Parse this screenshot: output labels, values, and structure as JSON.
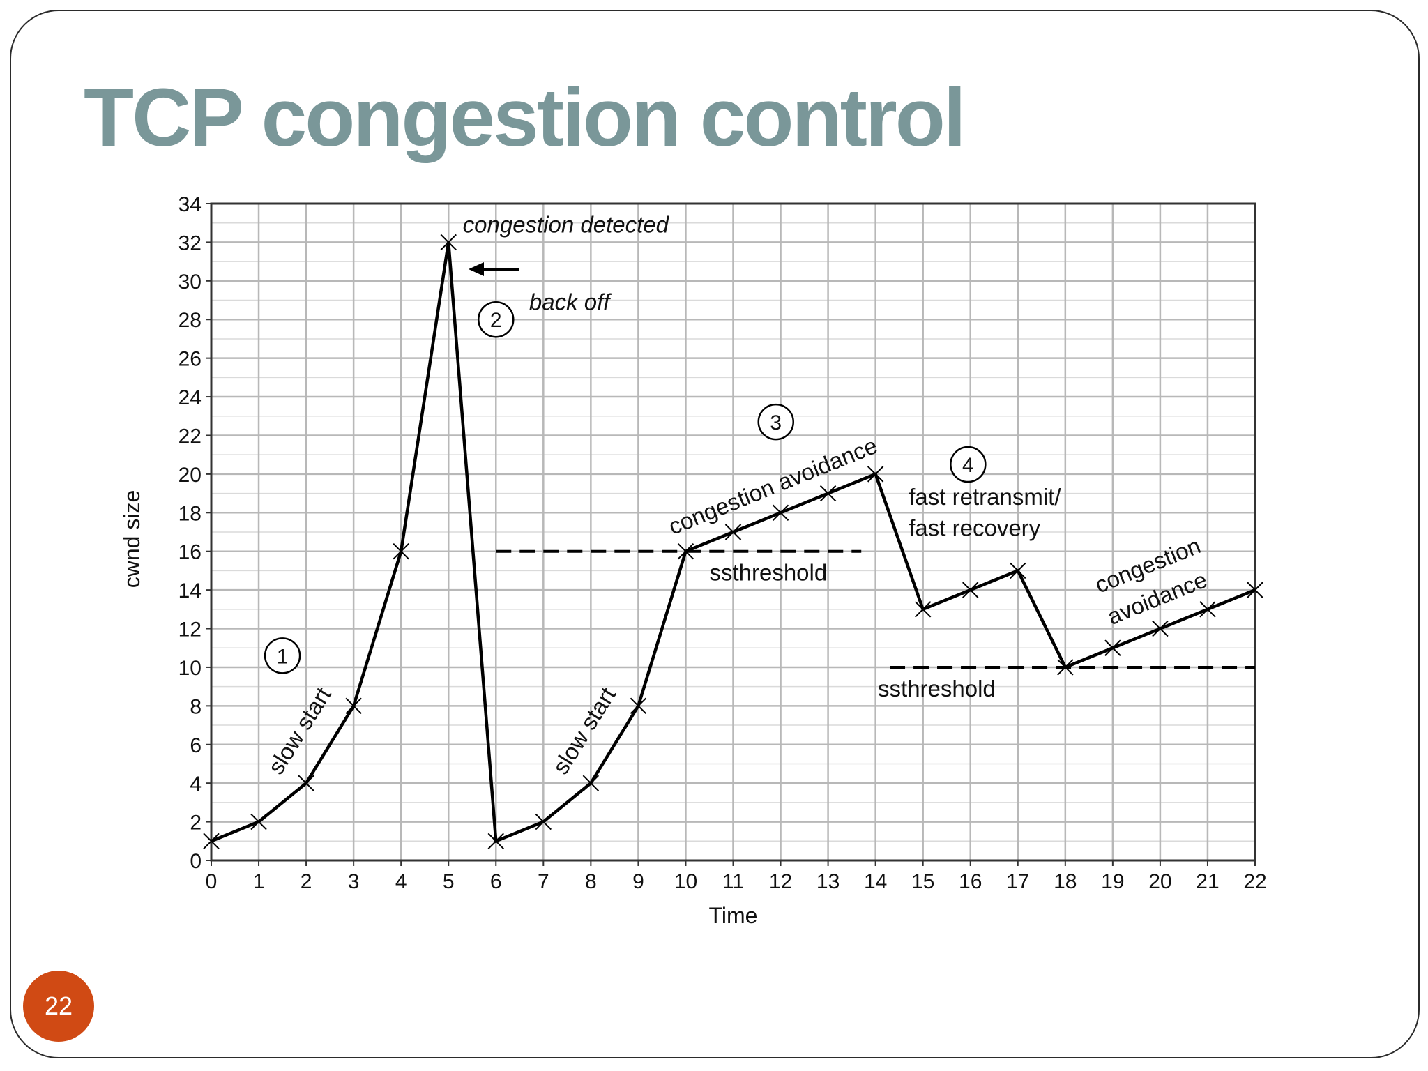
{
  "slide": {
    "title": "TCP congestion control",
    "page_number": "22",
    "badge_color": "#d04a14",
    "title_color": "#7a9799"
  },
  "chart_data": {
    "type": "line",
    "xlabel": "Time",
    "ylabel": "cwnd size",
    "xlim": [
      0,
      22
    ],
    "ylim": [
      0,
      34
    ],
    "x_ticks": [
      0,
      1,
      2,
      3,
      4,
      5,
      6,
      7,
      8,
      9,
      10,
      11,
      12,
      13,
      14,
      15,
      16,
      17,
      18,
      19,
      20,
      21,
      22
    ],
    "y_ticks": [
      0,
      2,
      4,
      6,
      8,
      10,
      12,
      14,
      16,
      18,
      20,
      22,
      24,
      26,
      28,
      30,
      32,
      34
    ],
    "grid": true,
    "x": [
      0,
      1,
      2,
      3,
      4,
      5,
      6,
      7,
      8,
      9,
      10,
      11,
      12,
      13,
      14,
      15,
      16,
      17,
      18,
      19,
      20,
      21,
      22
    ],
    "y": [
      1,
      2,
      4,
      8,
      16,
      32,
      1,
      2,
      4,
      8,
      16,
      17,
      18,
      19,
      20,
      13,
      14,
      15,
      10,
      11,
      12,
      13,
      14
    ],
    "thresholds": [
      {
        "label": "ssthreshold",
        "y": 16,
        "x_start": 6,
        "x_end": 13.7
      },
      {
        "label": "ssthreshold",
        "y": 10,
        "x_start": 14.3,
        "x_end": 22
      }
    ],
    "annotations": [
      {
        "id": "congestion-detected",
        "text": "congestion detected",
        "x": 5.3,
        "y": 32.5,
        "italic": true
      },
      {
        "id": "back-off",
        "text": "back off",
        "x": 6.7,
        "y": 28.5,
        "italic": true
      },
      {
        "id": "slow-start-1",
        "text": "slow start",
        "x": 2.0,
        "y": 6.5,
        "angle": -58
      },
      {
        "id": "slow-start-2",
        "text": "slow start",
        "x": 8.0,
        "y": 6.5,
        "angle": -58
      },
      {
        "id": "congestion-avoidance-1",
        "text": "congestion avoidance",
        "x": 11.9,
        "y": 19.0,
        "angle": -22
      },
      {
        "id": "fast-retransmit",
        "text": "fast retransmit/",
        "x": 14.7,
        "y": 18.4
      },
      {
        "id": "fast-recovery",
        "text": "fast recovery",
        "x": 14.7,
        "y": 16.8
      },
      {
        "id": "congestion-avoidance-2a",
        "text": "congestion",
        "x": 19.8,
        "y": 14.9,
        "angle": -22
      },
      {
        "id": "congestion-avoidance-2b",
        "text": "avoidance",
        "x": 20.0,
        "y": 13.2,
        "angle": -22
      }
    ],
    "phase_markers": [
      {
        "label": "1",
        "x": 1.5,
        "y": 10.6
      },
      {
        "label": "2",
        "x": 6.0,
        "y": 28.0
      },
      {
        "label": "3",
        "x": 11.9,
        "y": 22.7
      },
      {
        "label": "4",
        "x": 15.95,
        "y": 20.5
      }
    ],
    "line_color": "#000000",
    "grid_color": "#b8b8b8"
  }
}
